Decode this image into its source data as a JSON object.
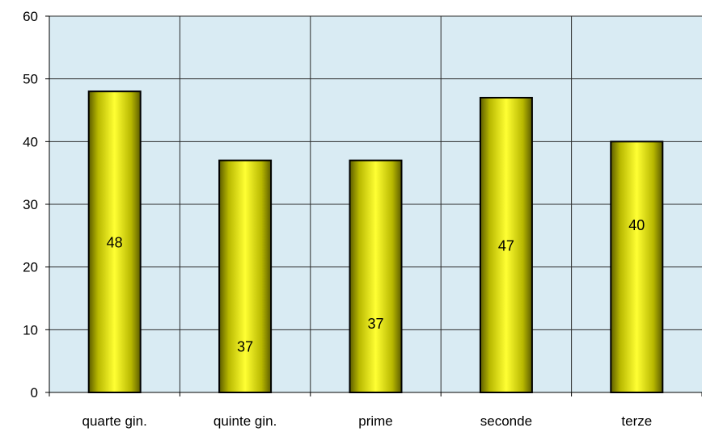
{
  "colors": {
    "plot_background": "#d9ebf3",
    "gridline": "#2b2b2b",
    "bar_fill_light": "#ffff33",
    "bar_fill_dark": "#5c5c00",
    "bar_stroke": "#000000"
  },
  "chart_data": {
    "type": "bar",
    "categories": [
      "quarte gin.",
      "quinte gin.",
      "prime",
      "seconde",
      "terze"
    ],
    "values": [
      48,
      37,
      37,
      47,
      40
    ],
    "data_labels": [
      "48",
      "37",
      "37",
      "47",
      "40"
    ],
    "yticks": [
      "0",
      "10",
      "20",
      "30",
      "40",
      "50",
      "60"
    ],
    "ylim": [
      0,
      60
    ],
    "title": "",
    "xlabel": "",
    "ylabel": "",
    "grid": true,
    "legend": "none"
  }
}
